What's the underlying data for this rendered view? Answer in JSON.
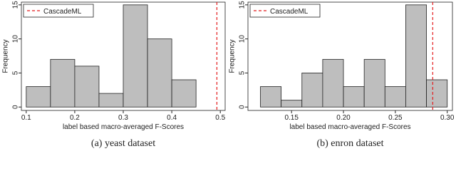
{
  "chart_data": [
    {
      "type": "histogram",
      "xlabel": "label based macro-averaged F-Scores",
      "ylabel": "Frequency",
      "caption": "(a) yeast dataset",
      "bins": [
        0.1,
        0.15,
        0.2,
        0.25,
        0.3,
        0.35,
        0.4,
        0.45
      ],
      "values": [
        3,
        7,
        6,
        2,
        15,
        10,
        4
      ],
      "color": "#bebebe",
      "reference": {
        "name": "CascadeML",
        "value": 0.493,
        "color": "#e41a1c"
      },
      "xlim": [
        0.09,
        0.51
      ],
      "xticks": [
        0.1,
        0.2,
        0.3,
        0.4,
        0.5
      ],
      "ylim": [
        -0.5,
        15.4
      ],
      "yticks": [
        0,
        5,
        10,
        15
      ]
    },
    {
      "type": "histogram",
      "xlabel": "label based macro-averaged F-Scores",
      "ylabel": "Frequency",
      "caption": "(b) enron dataset",
      "bins": [
        0.12,
        0.14,
        0.16,
        0.18,
        0.2,
        0.22,
        0.24,
        0.26,
        0.28,
        0.3
      ],
      "values": [
        3,
        1,
        5,
        7,
        3,
        7,
        3,
        15,
        4
      ],
      "color": "#bebebe",
      "reference": {
        "name": "CascadeML",
        "value": 0.286,
        "color": "#e41a1c"
      },
      "xlim": [
        0.108,
        0.305
      ],
      "xticks": [
        0.15,
        {
          "value": 0.2,
          "label": "0.20"
        },
        0.25,
        {
          "value": 0.3,
          "label": "0.30"
        }
      ],
      "ylim": [
        -0.5,
        15.4
      ],
      "yticks": [
        0,
        5,
        10,
        15
      ]
    }
  ]
}
